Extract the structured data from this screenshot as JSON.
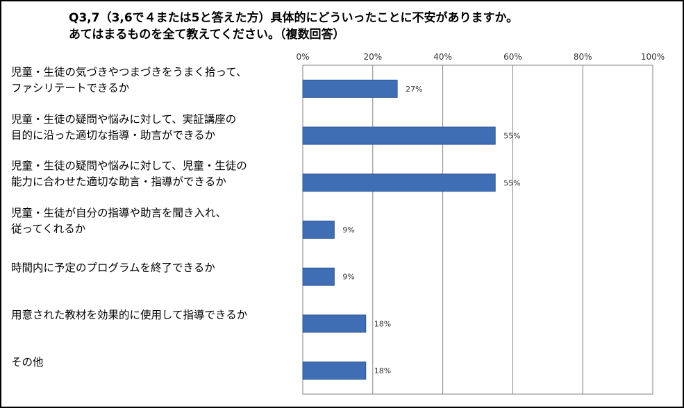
{
  "chart_data": {
    "type": "bar",
    "orientation": "horizontal",
    "title": [
      "Q3,7（3,6で４または5と答えた方）具体的にどういったことに不安がありますか。",
      "あてはまるものを全て教えてください。（複数回答）"
    ],
    "categories": [
      [
        "児童・生徒の気づきやつまづきをうまく拾って、",
        "ファシリテートできるか"
      ],
      [
        "児童・生徒の疑問や悩みに対して、実証講座の",
        "目的に沿った適切な指導・助言ができるか"
      ],
      [
        "児童・生徒の疑問や悩みに対して、児童・生徒の",
        "能力に合わせた適切な助言・指導ができるか"
      ],
      [
        "児童・生徒が自分の指導や助言を聞き入れ、",
        "従ってくれるか"
      ],
      [
        "時間内に予定のプログラムを終了できるか"
      ],
      [
        "用意された教材を効果的に使用して指導できるか"
      ],
      [
        "その他"
      ]
    ],
    "values": [
      27,
      55,
      55,
      9,
      9,
      18,
      18
    ],
    "data_labels": [
      "27%",
      "55%",
      "55%",
      "9%",
      "9%",
      "18%",
      "18%"
    ],
    "x_ticks": [
      "0%",
      "20%",
      "40%",
      "60%",
      "80%",
      "100%"
    ],
    "xlim": [
      0,
      100
    ],
    "grid": true,
    "bar_color": "#3F6EB4",
    "bar_edge_color": "#2C5596"
  }
}
